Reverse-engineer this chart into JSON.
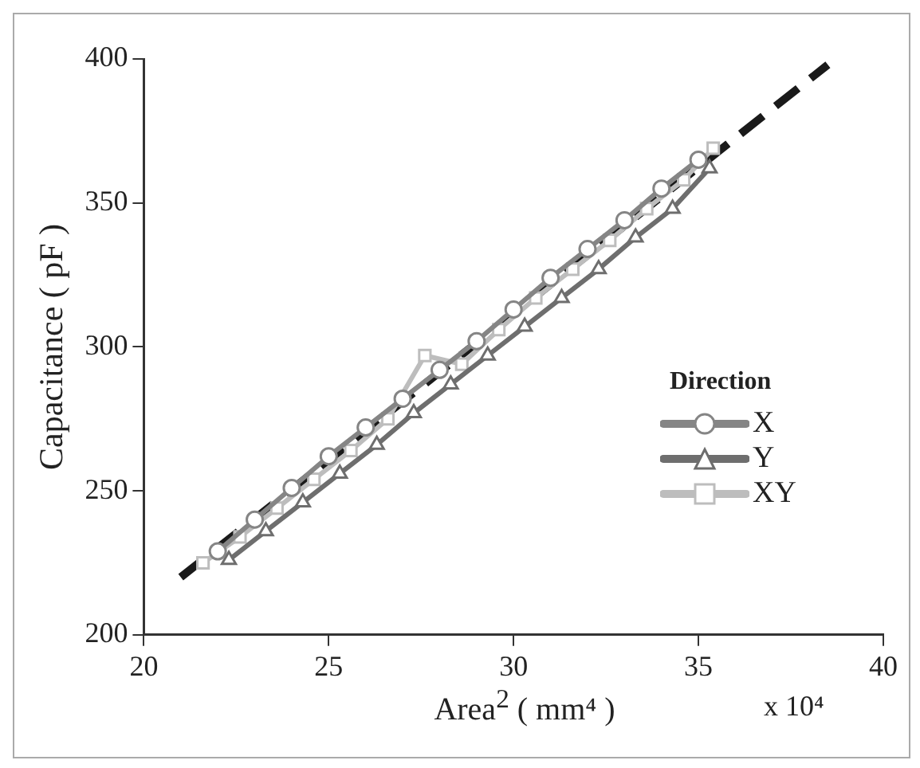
{
  "chart_data": {
    "type": "line",
    "xlabel": "Area$^{2}$ ( mm⁴ )",
    "ylabel": "Capacitance ( pF )",
    "legend_title": "Direction",
    "legend": "right",
    "grid": false,
    "xlim": [
      20,
      40
    ],
    "xticks": [
      20,
      25,
      30,
      35,
      40
    ],
    "ylim": [
      200,
      400
    ],
    "yticks": [
      200,
      250,
      300,
      350,
      400
    ],
    "annotations": [
      "x 10⁴"
    ],
    "series": [
      {
        "name": "X",
        "color": "#858585",
        "marker": "circle",
        "x": [
          22,
          23,
          24,
          25,
          26,
          27,
          28,
          29,
          30,
          31,
          32,
          33,
          34,
          35
        ],
        "values": [
          229,
          240,
          251,
          262,
          272,
          282,
          292,
          302,
          313,
          324,
          334,
          344,
          355,
          365
        ]
      },
      {
        "name": "Y",
        "color": "#6e6e6e",
        "marker": "triangle",
        "x": [
          22.3,
          23.3,
          24.3,
          25.3,
          26.3,
          27.3,
          28.3,
          29.3,
          30.3,
          31.3,
          32.3,
          33.3,
          34.3,
          35.3
        ],
        "values": [
          226,
          236,
          246,
          256,
          266,
          277,
          287,
          297,
          307,
          317,
          327,
          338,
          348,
          362
        ]
      },
      {
        "name": "XY",
        "color": "#bdbdbd",
        "marker": "square",
        "x": [
          21.6,
          22.6,
          23.6,
          24.6,
          25.6,
          26.6,
          27.6,
          28.6,
          29.6,
          30.6,
          31.6,
          32.6,
          33.6,
          34.6,
          35.4
        ],
        "values": [
          225,
          234,
          244,
          254,
          264,
          275,
          297,
          294,
          306,
          317,
          327,
          337,
          348,
          358,
          369
        ]
      },
      {
        "type": "line",
        "color": "#1a1a1a",
        "marker": "none",
        "line_style": "dashed",
        "x": [
          21,
          38.5
        ],
        "values": [
          220,
          398
        ]
      }
    ]
  }
}
